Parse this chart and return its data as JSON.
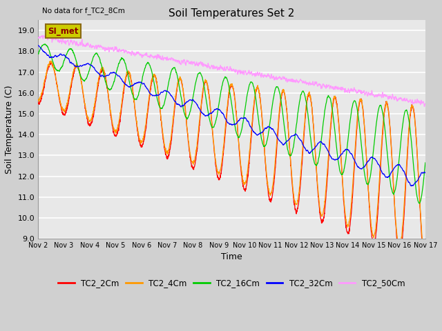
{
  "title": "Soil Temperatures Set 2",
  "xlabel": "Time",
  "ylabel": "Soil Temperature (C)",
  "note": "No data for f_TC2_8Cm",
  "legend_label": "SI_met",
  "ylim": [
    9.0,
    19.5
  ],
  "yticks": [
    9.0,
    10.0,
    11.0,
    12.0,
    13.0,
    14.0,
    15.0,
    16.0,
    17.0,
    18.0,
    19.0
  ],
  "xtick_labels": [
    "Nov 2",
    "Nov 3",
    "Nov 4",
    "Nov 5",
    "Nov 6",
    "Nov 7",
    "Nov 8",
    "Nov 9",
    "Nov 10",
    "Nov 11",
    "Nov 12",
    "Nov 13",
    "Nov 14",
    "Nov 15",
    "Nov 16",
    "Nov 17"
  ],
  "series_colors": {
    "TC2_2Cm": "#ff0000",
    "TC2_4Cm": "#ff9900",
    "TC2_16Cm": "#00cc00",
    "TC2_32Cm": "#0000ff",
    "TC2_50Cm": "#ff99ff"
  },
  "fig_bg_color": "#d0d0d0",
  "plot_bg_color": "#e8e8e8",
  "title_fontsize": 11,
  "axis_fontsize": 9,
  "tick_fontsize": 8
}
